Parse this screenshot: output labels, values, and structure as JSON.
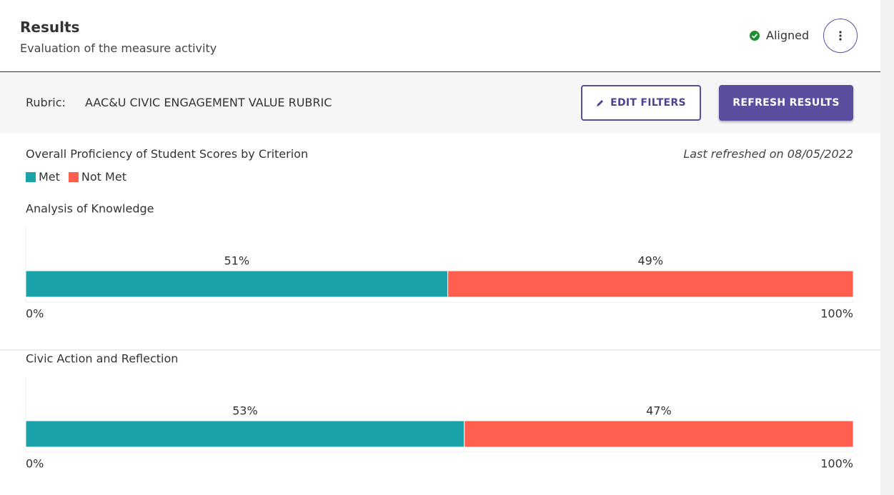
{
  "header": {
    "title": "Results",
    "subtitle": "Evaluation of the measure activity",
    "status": "Aligned"
  },
  "toolbar": {
    "rubric_label": "Rubric:",
    "rubric_name": "AAC&U CIVIC ENGAGEMENT VALUE RUBRIC",
    "buttons": [
      "EDIT FILTERS",
      "REFRESH RESULTS"
    ]
  },
  "section": {
    "title": "Overall Proficiency of Student Scores by Criterion",
    "refreshed": "Last refreshed on 08/05/2022"
  },
  "chart_data": [
    {
      "type": "bar",
      "orientation": "horizontal",
      "stacked": true,
      "title": "Analysis of Knowledge",
      "series": [
        {
          "name": "Met",
          "color": "#1aa3a8",
          "values": [
            51
          ],
          "value_labels": [
            "51%"
          ]
        },
        {
          "name": "Not Met",
          "color": "#ff5f4f",
          "values": [
            49
          ],
          "value_labels": [
            "49%"
          ]
        }
      ],
      "xlim": [
        0,
        100
      ],
      "xticks": [
        {
          "value": 0,
          "label": "0%"
        },
        {
          "value": 100,
          "label": "100%"
        }
      ]
    },
    {
      "type": "bar",
      "orientation": "horizontal",
      "stacked": true,
      "title": "Civic Action and Reflection",
      "series": [
        {
          "name": "Met",
          "color": "#1aa3a8",
          "values": [
            53
          ],
          "value_labels": [
            "53%"
          ]
        },
        {
          "name": "Not Met",
          "color": "#ff5f4f",
          "values": [
            47
          ],
          "value_labels": [
            "47%"
          ]
        }
      ],
      "xlim": [
        0,
        100
      ],
      "xticks": [
        {
          "value": 0,
          "label": "0%"
        },
        {
          "value": 100,
          "label": "100%"
        }
      ]
    }
  ]
}
